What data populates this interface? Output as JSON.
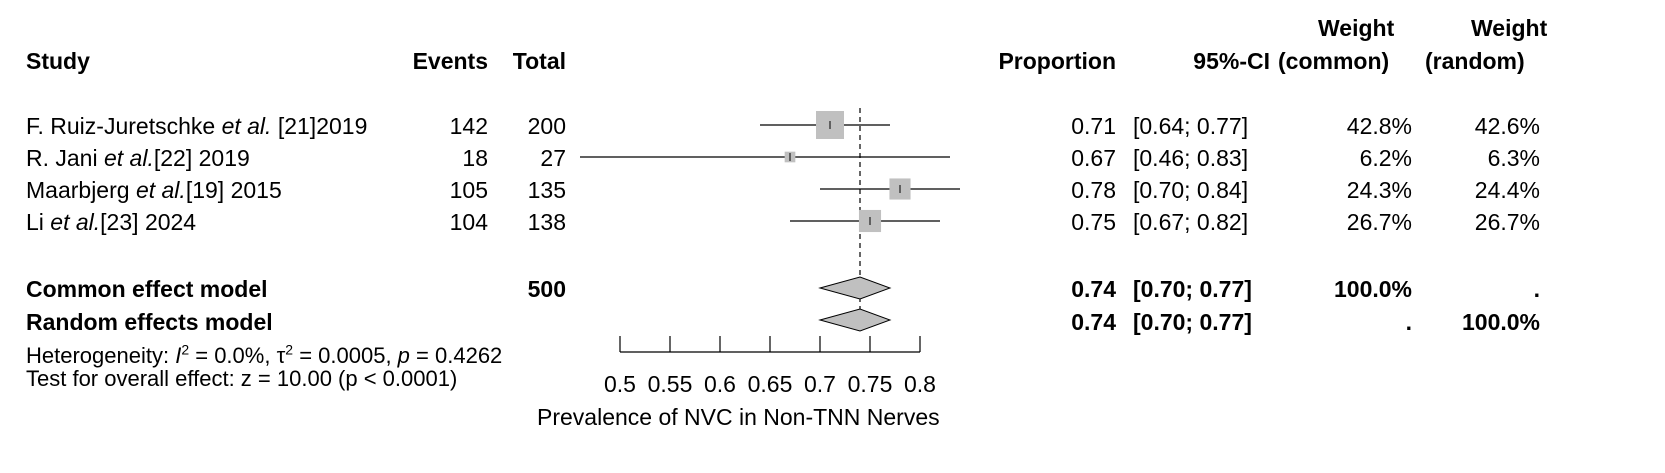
{
  "chart_data": {
    "type": "forest",
    "headers": {
      "study": "Study",
      "events": "Events",
      "total": "Total",
      "proportion": "Proportion",
      "ci": "95%-CI",
      "weight_common_1": "Weight",
      "weight_common_2": "(common)",
      "weight_random_1": "Weight",
      "weight_random_2": "(random)"
    },
    "studies": [
      {
        "author": "F. Ruiz-Juretschke",
        "etal": "et al.",
        "ref": "[21]",
        "year": "2019",
        "events": "142",
        "total": "200",
        "prop_text": "0.71",
        "ci_text": "[0.64; 0.77]",
        "w_common": "42.8%",
        "w_random": "42.6%",
        "est": 0.71,
        "lo": 0.64,
        "hi": 0.77,
        "weight": 42.8
      },
      {
        "author": "R. Jani",
        "etal": "et al.",
        "ref": "[22]",
        "year": "2019",
        "events": "18",
        "total": "27",
        "prop_text": "0.67",
        "ci_text": "[0.46; 0.83]",
        "w_common": "6.2%",
        "w_random": "6.3%",
        "est": 0.67,
        "lo": 0.46,
        "hi": 0.83,
        "weight": 6.2
      },
      {
        "author": "Maarbjerg",
        "etal": "et al.",
        "ref": "[19]",
        "year": "2015",
        "events": "105",
        "total": "135",
        "prop_text": "0.78",
        "ci_text": "[0.70; 0.84]",
        "w_common": "24.3%",
        "w_random": "24.4%",
        "est": 0.78,
        "lo": 0.7,
        "hi": 0.84,
        "weight": 24.3
      },
      {
        "author": "Li",
        "etal": "et al.",
        "ref": "[23]",
        "year": "2024",
        "events": "104",
        "total": "138",
        "prop_text": "0.75",
        "ci_text": "[0.67; 0.82]",
        "w_common": "26.7%",
        "w_random": "26.7%",
        "est": 0.75,
        "lo": 0.67,
        "hi": 0.82,
        "weight": 26.7
      }
    ],
    "pooled": [
      {
        "label": "Common effect model",
        "total": "500",
        "prop_text": "0.74",
        "ci_text": "[0.70; 0.77]",
        "w_common": "100.0%",
        "w_random": ".",
        "est": 0.74,
        "lo": 0.7,
        "hi": 0.77
      },
      {
        "label": "Random effects model",
        "total": "",
        "prop_text": "0.74",
        "ci_text": "[0.70; 0.77]",
        "w_common": ".",
        "w_random": "100.0%",
        "est": 0.74,
        "lo": 0.7,
        "hi": 0.77
      }
    ],
    "heterogeneity": {
      "prefix": "Heterogeneity: ",
      "i_symbol": "I",
      "i_value": " = 0.0%, ",
      "tau_symbol": "τ",
      "tau_value": " = 0.0005, ",
      "p_symbol": "p",
      "p_value": " = 0.4262",
      "sup": "2"
    },
    "overall_test": "Test for overall effect: z = 10.00 (p < 0.0001)",
    "xaxis": {
      "ticks": [
        0.5,
        0.55,
        0.6,
        0.65,
        0.7,
        0.75,
        0.8
      ],
      "tick_labels": [
        "0.5",
        "0.55",
        "0.6",
        "0.65",
        "0.7",
        "0.75",
        "0.8"
      ],
      "label": "Prevalence of NVC in Non-TNN Nerves",
      "range": [
        0.5,
        0.8
      ]
    },
    "reference_line": 0.74,
    "colors": {
      "box": "#c0c0c0",
      "diamond": "#c0c0c0",
      "line": "#000000"
    }
  }
}
